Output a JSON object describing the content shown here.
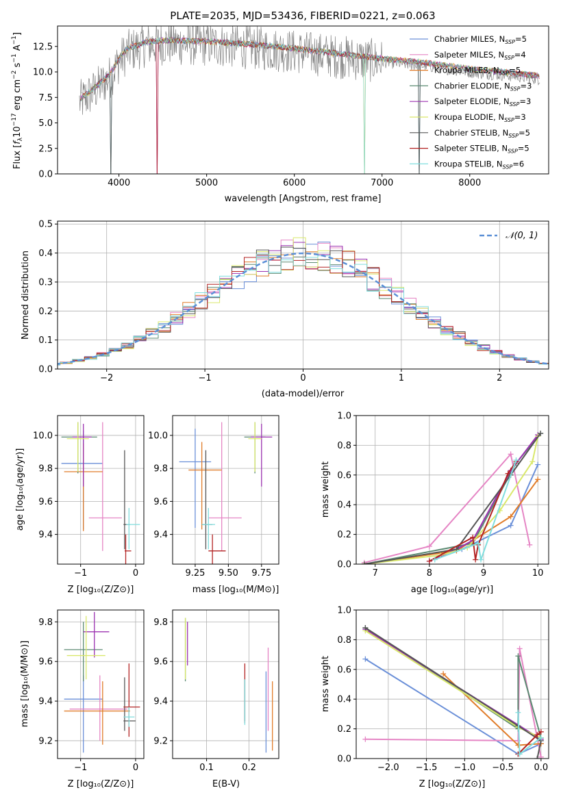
{
  "chart_data": [
    {
      "type": "line",
      "title": "PLATE=2035, MJD=53436, FIBERID=0221, z=0.063",
      "xlabel": "wavelength [Angstrom, rest frame]",
      "ylabel": "Flux [fλ10⁻¹⁷ erg cm⁻² s⁻¹ A⁻¹]",
      "xlim": [
        3300,
        8900
      ],
      "ylim": [
        0,
        14.5
      ],
      "xticks": [
        "4000",
        "5000",
        "6000",
        "7000",
        "8000"
      ],
      "yticks": [
        "0.0",
        "2.5",
        "5.0",
        "7.5",
        "10.0",
        "12.5"
      ],
      "legend": "top-right",
      "series": [
        {
          "name": "Chabrier MILES, N",
          "sub": "SSP",
          "suffix": "=5",
          "color": "#6a8fd8"
        },
        {
          "name": "Salpeter MILES, N",
          "sub": "SSP",
          "suffix": "=4",
          "color": "#e584c4"
        },
        {
          "name": "Kroupa MILES, N",
          "sub": "SSP",
          "suffix": "=5",
          "color": "#e07b28"
        },
        {
          "name": "Chabrier ELODIE, N",
          "sub": "SSP",
          "suffix": "=3",
          "color": "#5b8a72"
        },
        {
          "name": "Salpeter ELODIE, N",
          "sub": "SSP",
          "suffix": "=3",
          "color": "#9b30b0"
        },
        {
          "name": "Kroupa ELODIE, N",
          "sub": "SSP",
          "suffix": "=3",
          "color": "#d9e86a"
        },
        {
          "name": "Chabrier STELIB, N",
          "sub": "SSP",
          "suffix": "=5",
          "color": "#555555"
        },
        {
          "name": "Salpeter STELIB, N",
          "sub": "SSP",
          "suffix": "=5",
          "color": "#b22222"
        },
        {
          "name": "Kroupa STELIB, N",
          "sub": "SSP",
          "suffix": "=6",
          "color": "#7fdede"
        }
      ],
      "observed_spectrum_color": "#808080",
      "approx_continuum": {
        "x": [
          3550,
          3700,
          3900,
          4000,
          4100,
          4300,
          4500,
          5000,
          5500,
          6000,
          6500,
          7000,
          7500,
          8000,
          8500,
          8800
        ],
        "y": [
          7.0,
          8.0,
          9.5,
          11.0,
          12.0,
          12.6,
          12.8,
          12.7,
          12.4,
          12.0,
          11.5,
          11.0,
          10.6,
          10.0,
          9.6,
          9.3
        ]
      }
    },
    {
      "type": "histogram",
      "xlabel": "(data-model)/error",
      "ylabel": "Normed distribution",
      "xlim": [
        -2.5,
        2.5
      ],
      "ylim": [
        0,
        0.51
      ],
      "xticks": [
        "−2",
        "−1",
        "0",
        "1",
        "2"
      ],
      "yticks": [
        "0.0",
        "0.1",
        "0.2",
        "0.3",
        "0.4",
        "0.5"
      ],
      "legend_label": "𝒩(0, 1)",
      "legend": "top-right",
      "gaussian": {
        "mu": 0,
        "sigma": 1,
        "color": "#5b8fd6"
      },
      "bin_width": 0.125
    },
    {
      "type": "errorbar",
      "xlabel": "Z [log₁₀(Z/Z⊙)]",
      "ylabel": "age  [log₁₀(age/yr)]",
      "xlim": [
        -1.42,
        0.15
      ],
      "ylim": [
        9.22,
        10.12
      ],
      "xticks": [
        "−1",
        "0"
      ],
      "yticks": [
        "9.4",
        "9.6",
        "9.8",
        "10.0"
      ]
    },
    {
      "type": "errorbar",
      "xlabel": "mass [log₁₀(M/M⊙)]",
      "xlim": [
        9.08,
        9.88
      ],
      "ylim": [
        9.22,
        10.12
      ],
      "xticks": [
        "9.25",
        "9.50",
        "9.75"
      ],
      "yticks": [
        "9.4",
        "9.6",
        "9.8",
        "10.0"
      ]
    },
    {
      "type": "line",
      "xlabel": "age  [log₁₀(age/yr)]",
      "ylabel": "mass weight",
      "xlim": [
        6.65,
        10.2
      ],
      "ylim": [
        0,
        1.0
      ],
      "xticks": [
        "7",
        "8",
        "9",
        "10"
      ],
      "yticks": [
        "0.0",
        "0.2",
        "0.4",
        "0.6",
        "0.8",
        "1.0"
      ],
      "series": [
        {
          "x": [
            6.8,
            8.6,
            9.5,
            10.0
          ],
          "y": [
            0.0,
            0.1,
            0.26,
            0.67
          ]
        },
        {
          "x": [
            6.8,
            8.0,
            9.5,
            9.85
          ],
          "y": [
            0.01,
            0.12,
            0.74,
            0.13
          ]
        },
        {
          "x": [
            6.8,
            8.5,
            9.5,
            10.0
          ],
          "y": [
            0.0,
            0.09,
            0.32,
            0.57
          ]
        },
        {
          "x": [
            6.8,
            8.8,
            9.6,
            10.05
          ],
          "y": [
            0.0,
            0.14,
            0.68,
            0.88
          ]
        },
        {
          "x": [
            8.0,
            8.5,
            8.8,
            9.5,
            10.0
          ],
          "y": [
            0.02,
            0.1,
            0.16,
            0.63,
            0.87
          ]
        },
        {
          "x": [
            6.8,
            8.2,
            8.7,
            9.3,
            9.9,
            10.0
          ],
          "y": [
            0.0,
            0.06,
            0.11,
            0.36,
            0.69,
            0.86
          ]
        },
        {
          "x": [
            6.8,
            8.5,
            9.5,
            10.05
          ],
          "y": [
            0.0,
            0.1,
            0.6,
            0.88
          ]
        },
        {
          "x": [
            8.0,
            8.8,
            8.85,
            8.9,
            9.45,
            9.6
          ],
          "y": [
            0.02,
            0.18,
            0.03,
            0.13,
            0.61,
            0.69
          ]
        },
        {
          "x": [
            8.1,
            8.9,
            8.95,
            9.6
          ],
          "y": [
            0.03,
            0.14,
            0.03,
            0.7
          ]
        }
      ]
    },
    {
      "type": "errorbar",
      "xlabel": "Z [log₁₀(Z/Z⊙)]",
      "ylabel": "mass [log₁₀(M/M⊙)]",
      "xlim": [
        -1.42,
        0.15
      ],
      "ylim": [
        9.11,
        9.86
      ],
      "xticks": [
        "−1",
        "0"
      ],
      "yticks": [
        "9.2",
        "9.4",
        "9.6",
        "9.8"
      ]
    },
    {
      "type": "errorbar",
      "xlabel": "E(B-V)",
      "xlim": [
        0.02,
        0.27
      ],
      "ylim": [
        9.11,
        9.86
      ],
      "xticks": [
        "0.1",
        "0.2"
      ],
      "yticks": [
        "9.2",
        "9.4",
        "9.6",
        "9.8"
      ]
    },
    {
      "type": "line",
      "xlabel": "Z [log₁₀(Z/Z⊙)]",
      "ylabel": "mass weight",
      "xlim": [
        -2.42,
        0.1
      ],
      "ylim": [
        0,
        1.0
      ],
      "xticks": [
        "−2.0",
        "−1.5",
        "−1.0",
        "−0.5",
        "0.0"
      ],
      "yticks": [
        "0.0",
        "0.2",
        "0.4",
        "0.6",
        "0.8",
        "1.0"
      ],
      "series": [
        {
          "x": [
            -2.3,
            -0.3,
            0.0
          ],
          "y": [
            0.67,
            0.03,
            0.1
          ]
        },
        {
          "x": [
            -2.3,
            -0.3,
            -0.28,
            0.0
          ],
          "y": [
            0.13,
            0.12,
            0.74,
            0.01
          ]
        },
        {
          "x": [
            -1.28,
            -0.3,
            0.0
          ],
          "y": [
            0.57,
            0.09,
            0.1
          ]
        },
        {
          "x": [
            -2.3,
            -0.3,
            -0.3,
            0.0
          ],
          "y": [
            0.88,
            0.2,
            0.69,
            0.14
          ]
        },
        {
          "x": [
            -2.3,
            0.0
          ],
          "y": [
            0.87,
            0.13
          ]
        },
        {
          "x": [
            -2.3,
            -0.3,
            0.0
          ],
          "y": [
            0.86,
            0.21,
            0.14
          ]
        },
        {
          "x": [
            -2.3,
            -0.3,
            0.0,
            -0.05
          ],
          "y": [
            0.88,
            0.22,
            0.12,
            0.0
          ]
        },
        {
          "x": [
            -0.3,
            -0.05,
            0.0
          ],
          "y": [
            0.03,
            0.16,
            0.18
          ]
        },
        {
          "x": [
            -0.3,
            -0.28,
            0.0
          ],
          "y": [
            0.31,
            0.03,
            0.14
          ]
        }
      ]
    }
  ],
  "errorbars": {
    "age_Z": [
      {
        "x": -0.95,
        "xerr": [
          0.4,
          0.35
        ],
        "y": 9.83,
        "yerr": [
          0.4,
          0.2
        ],
        "c": 0
      },
      {
        "x": -0.6,
        "xerr": [
          0.25,
          0.35
        ],
        "y": 9.5,
        "yerr": [
          0.2,
          0.58
        ],
        "c": 1
      },
      {
        "x": -0.95,
        "xerr": [
          0.35,
          0.35
        ],
        "y": 9.78,
        "yerr": [
          0.36,
          0.17
        ],
        "c": 2
      },
      {
        "x": -1.05,
        "xerr": [
          0.3,
          0.35
        ],
        "y": 9.99,
        "yerr": [
          0.22,
          0.09
        ],
        "c": 3
      },
      {
        "x": -0.95,
        "xerr": [
          0.2,
          0.15
        ],
        "y": 9.99,
        "yerr": [
          0.3,
          0.08
        ],
        "c": 4
      },
      {
        "x": -1.05,
        "xerr": [
          0.2,
          0.2
        ],
        "y": 9.98,
        "yerr": [
          0.2,
          0.1
        ],
        "c": 5
      },
      {
        "x": -0.2,
        "xerr": [
          0.02,
          0.1
        ],
        "y": 9.46,
        "yerr": [
          0.15,
          0.45
        ],
        "c": 6
      },
      {
        "x": -0.18,
        "xerr": [
          0.02,
          0.1
        ],
        "y": 9.3,
        "yerr": [
          0.1,
          0.1
        ],
        "c": 7
      },
      {
        "x": -0.12,
        "xerr": [
          0.05,
          0.2
        ],
        "y": 9.46,
        "yerr": [
          0.15,
          0.1
        ],
        "c": 8
      }
    ],
    "age_mass": [
      {
        "x": 9.25,
        "xerr": [
          0.12,
          0.12
        ],
        "y": 9.84,
        "yerr": [
          0.4,
          0.2
        ],
        "c": 0
      },
      {
        "x": 9.45,
        "xerr": [
          0.1,
          0.15
        ],
        "y": 9.5,
        "yerr": [
          0.2,
          0.58
        ],
        "c": 1
      },
      {
        "x": 9.3,
        "xerr": [
          0.1,
          0.15
        ],
        "y": 9.79,
        "yerr": [
          0.36,
          0.17
        ],
        "c": 2
      },
      {
        "x": 9.7,
        "xerr": [
          0.08,
          0.08
        ],
        "y": 9.99,
        "yerr": [
          0.22,
          0.09
        ],
        "c": 3
      },
      {
        "x": 9.75,
        "xerr": [
          0.08,
          0.08
        ],
        "y": 9.99,
        "yerr": [
          0.3,
          0.08
        ],
        "c": 4
      },
      {
        "x": 9.7,
        "xerr": [
          0.05,
          0.05
        ],
        "y": 9.98,
        "yerr": [
          0.2,
          0.1
        ],
        "c": 5
      },
      {
        "x": 9.33,
        "xerr": [
          0.03,
          0.05
        ],
        "y": 9.46,
        "yerr": [
          0.15,
          0.45
        ],
        "c": 6
      },
      {
        "x": 9.38,
        "xerr": [
          0.03,
          0.1
        ],
        "y": 9.3,
        "yerr": [
          0.1,
          0.1
        ],
        "c": 7
      },
      {
        "x": 9.35,
        "xerr": [
          0.05,
          0.05
        ],
        "y": 9.46,
        "yerr": [
          0.15,
          0.1
        ],
        "c": 8
      }
    ],
    "mass_Z": [
      {
        "x": -0.95,
        "xerr": [
          0.35,
          0.35
        ],
        "y": 9.41,
        "yerr": [
          0.27,
          0.12
        ],
        "c": 0
      },
      {
        "x": -0.65,
        "xerr": [
          0.55,
          0.5
        ],
        "y": 9.36,
        "yerr": [
          0.16,
          0.17
        ],
        "c": 1
      },
      {
        "x": -0.6,
        "xerr": [
          0.7,
          0.5
        ],
        "y": 9.35,
        "yerr": [
          0.17,
          0.15
        ],
        "c": 2
      },
      {
        "x": -0.95,
        "xerr": [
          0.35,
          0.35
        ],
        "y": 9.66,
        "yerr": [
          0.16,
          0.14
        ],
        "c": 3
      },
      {
        "x": -0.75,
        "xerr": [
          0.2,
          0.27
        ],
        "y": 9.75,
        "yerr": [
          0.13,
          0.1
        ],
        "c": 4
      },
      {
        "x": -0.9,
        "xerr": [
          0.35,
          0.35
        ],
        "y": 9.63,
        "yerr": [
          0.12,
          0.2
        ],
        "c": 5
      },
      {
        "x": -0.2,
        "xerr": [
          0.02,
          0.2
        ],
        "y": 9.3,
        "yerr": [
          0.05,
          0.22
        ],
        "c": 6
      },
      {
        "x": -0.12,
        "xerr": [
          0.1,
          0.2
        ],
        "y": 9.37,
        "yerr": [
          0.15,
          0.22
        ],
        "c": 7
      },
      {
        "x": -0.12,
        "xerr": [
          0.1,
          0.1
        ],
        "y": 9.32,
        "yerr": [
          0.05,
          0.05
        ],
        "c": 8
      }
    ],
    "mass_ebv": [
      {
        "x": 0.24,
        "y": 9.4,
        "yerr": [
          0.26,
          0.15
        ],
        "c": 0
      },
      {
        "x": 0.245,
        "y": 9.4,
        "yerr": [
          0.15,
          0.27
        ],
        "c": 1
      },
      {
        "x": 0.255,
        "y": 9.32,
        "yerr": [
          0.17,
          0.18
        ],
        "c": 2
      },
      {
        "x": 0.05,
        "y": 9.66,
        "yerr": [
          0.16,
          0.16
        ],
        "c": 3
      },
      {
        "x": 0.055,
        "y": 9.7,
        "yerr": [
          0.12,
          0.1
        ],
        "c": 4
      },
      {
        "x": 0.05,
        "y": 9.63,
        "yerr": [
          0.12,
          0.19
        ],
        "c": 5
      },
      {
        "x": 0.19,
        "y": 9.36,
        "yerr": [
          0.06,
          0.15
        ],
        "c": 6
      },
      {
        "x": 0.19,
        "y": 9.42,
        "yerr": [
          0.13,
          0.17
        ],
        "c": 7
      },
      {
        "x": 0.19,
        "y": 9.38,
        "yerr": [
          0.1,
          0.13
        ],
        "c": 8
      }
    ]
  }
}
